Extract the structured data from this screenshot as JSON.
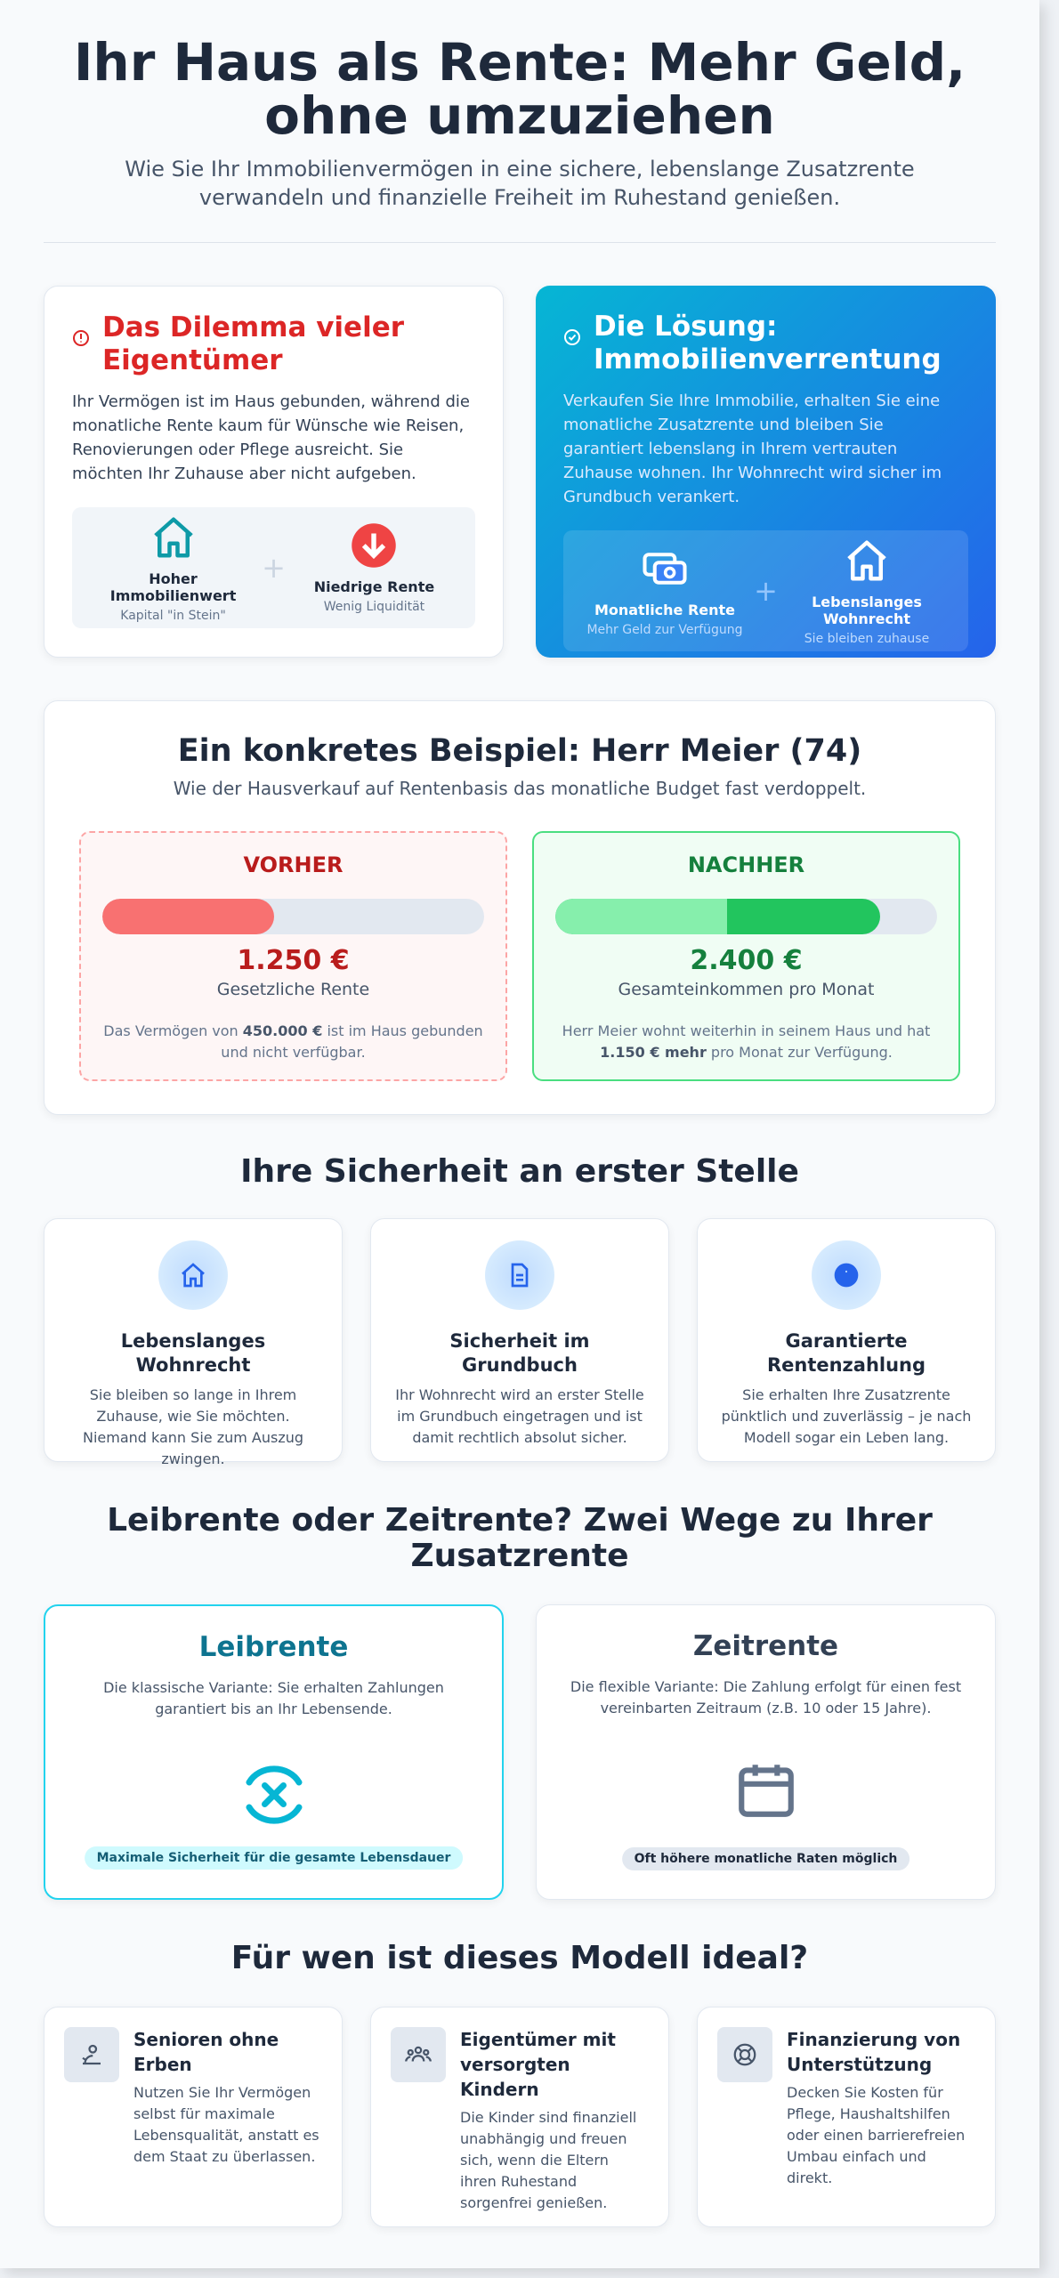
{
  "header": {
    "title": "Ihr Haus als Rente: Mehr Geld, ohne umzuziehen",
    "subtitle": "Wie Sie Ihr Immobilienvermögen in eine sichere, lebenslange Zusatzrente verwandeln und finanzielle Freiheit im Ruhestand genießen."
  },
  "problem": {
    "title": "Das Dilemma vieler Eigentümer",
    "text": "Ihr Vermögen ist im Haus gebunden, während die monatliche Rente kaum für Wünsche wie Reisen, Renovierungen oder Pflege ausreicht. Sie möchten Ihr Zuhause aber nicht aufgeben.",
    "items": [
      {
        "label": "Hoher Immobilienwert",
        "sub": "Kapital \"in Stein\""
      },
      {
        "label": "Niedrige Rente",
        "sub": "Wenig Liquidität"
      }
    ],
    "operator": "+"
  },
  "solution": {
    "title": "Die Lösung: Immobilienverrentung",
    "text": "Verkaufen Sie Ihre Immobilie, erhalten Sie eine monatliche Zusatzrente und bleiben Sie garantiert lebenslang in Ihrem vertrauten Zuhause wohnen. Ihr Wohnrecht wird sicher im Grundbuch verankert.",
    "items": [
      {
        "label": "Monatliche Rente",
        "sub": "Mehr Geld zur Verfügung"
      },
      {
        "label": "Lebenslanges Wohnrecht",
        "sub": "Sie bleiben zuhause"
      }
    ],
    "operator": "+"
  },
  "example": {
    "title": "Ein konkretes Beispiel: Herr Meier (74)",
    "subtitle": "Wie der Hausverkauf auf Rentenbasis das monatliche Budget fast verdoppelt.",
    "before": {
      "heading": "VORHER",
      "amount": "1.250 €",
      "label": "Gesetzliche Rente",
      "text_before": "Das Vermögen von ",
      "highlight": "450.000 €",
      "text_after": " ist im Haus gebunden und nicht verfügbar."
    },
    "after": {
      "heading": "NACHHER",
      "amount": "2.400 €",
      "label": "Gesamteinkommen pro Monat",
      "text_before": "Herr Meier wohnt weiterhin in seinem Haus und hat ",
      "highlight": "1.150 € mehr",
      "text_after": " pro Monat zur Verfügung."
    }
  },
  "security": {
    "title": "Ihre Sicherheit an erster Stelle",
    "cards": [
      {
        "title": "Lebenslanges Wohnrecht",
        "text": "Sie bleiben so lange in Ihrem Zuhause, wie Sie möchten. Niemand kann Sie zum Auszug zwingen."
      },
      {
        "title": "Sicherheit im Grundbuch",
        "text": "Ihr Wohnrecht wird an erster Stelle im Grundbuch eingetragen und ist damit rechtlich absolut sicher."
      },
      {
        "title": "Garantierte Rentenzahlung",
        "text": "Sie erhalten Ihre Zusatzrente pünktlich und zuverlässig – je nach Modell sogar ein Leben lang."
      }
    ]
  },
  "options": {
    "title": "Leibrente oder Zeitrente? Zwei Wege zu Ihrer Zusatzrente",
    "cards": [
      {
        "title": "Leibrente",
        "text": "Die klassische Variante: Sie erhalten Zahlungen garantiert bis an Ihr Lebensende.",
        "badge": "Maximale Sicherheit für die gesamte Lebensdauer"
      },
      {
        "title": "Zeitrente",
        "text": "Die flexible Variante: Die Zahlung erfolgt für einen fest vereinbarten Zeitraum (z.B. 10 oder 15 Jahre).",
        "badge": "Oft höhere monatliche Raten möglich"
      }
    ]
  },
  "audience": {
    "title": "Für wen ist dieses Modell ideal?",
    "cards": [
      {
        "title": "Senioren ohne Erben",
        "text": "Nutzen Sie Ihr Vermögen selbst für maximale Lebensqualität, anstatt es dem Staat zu überlassen."
      },
      {
        "title": "Eigentümer mit versorgten Kindern",
        "text": "Die Kinder sind finanziell unabhängig und freuen sich, wenn die Eltern ihren Ruhestand sorgenfrei genießen."
      },
      {
        "title": "Finanzierung von Unterstützung",
        "text": "Decken Sie Kosten für Pflege, Haushaltshilfen oder einen barrierefreien Umbau einfach und direkt."
      }
    ]
  }
}
